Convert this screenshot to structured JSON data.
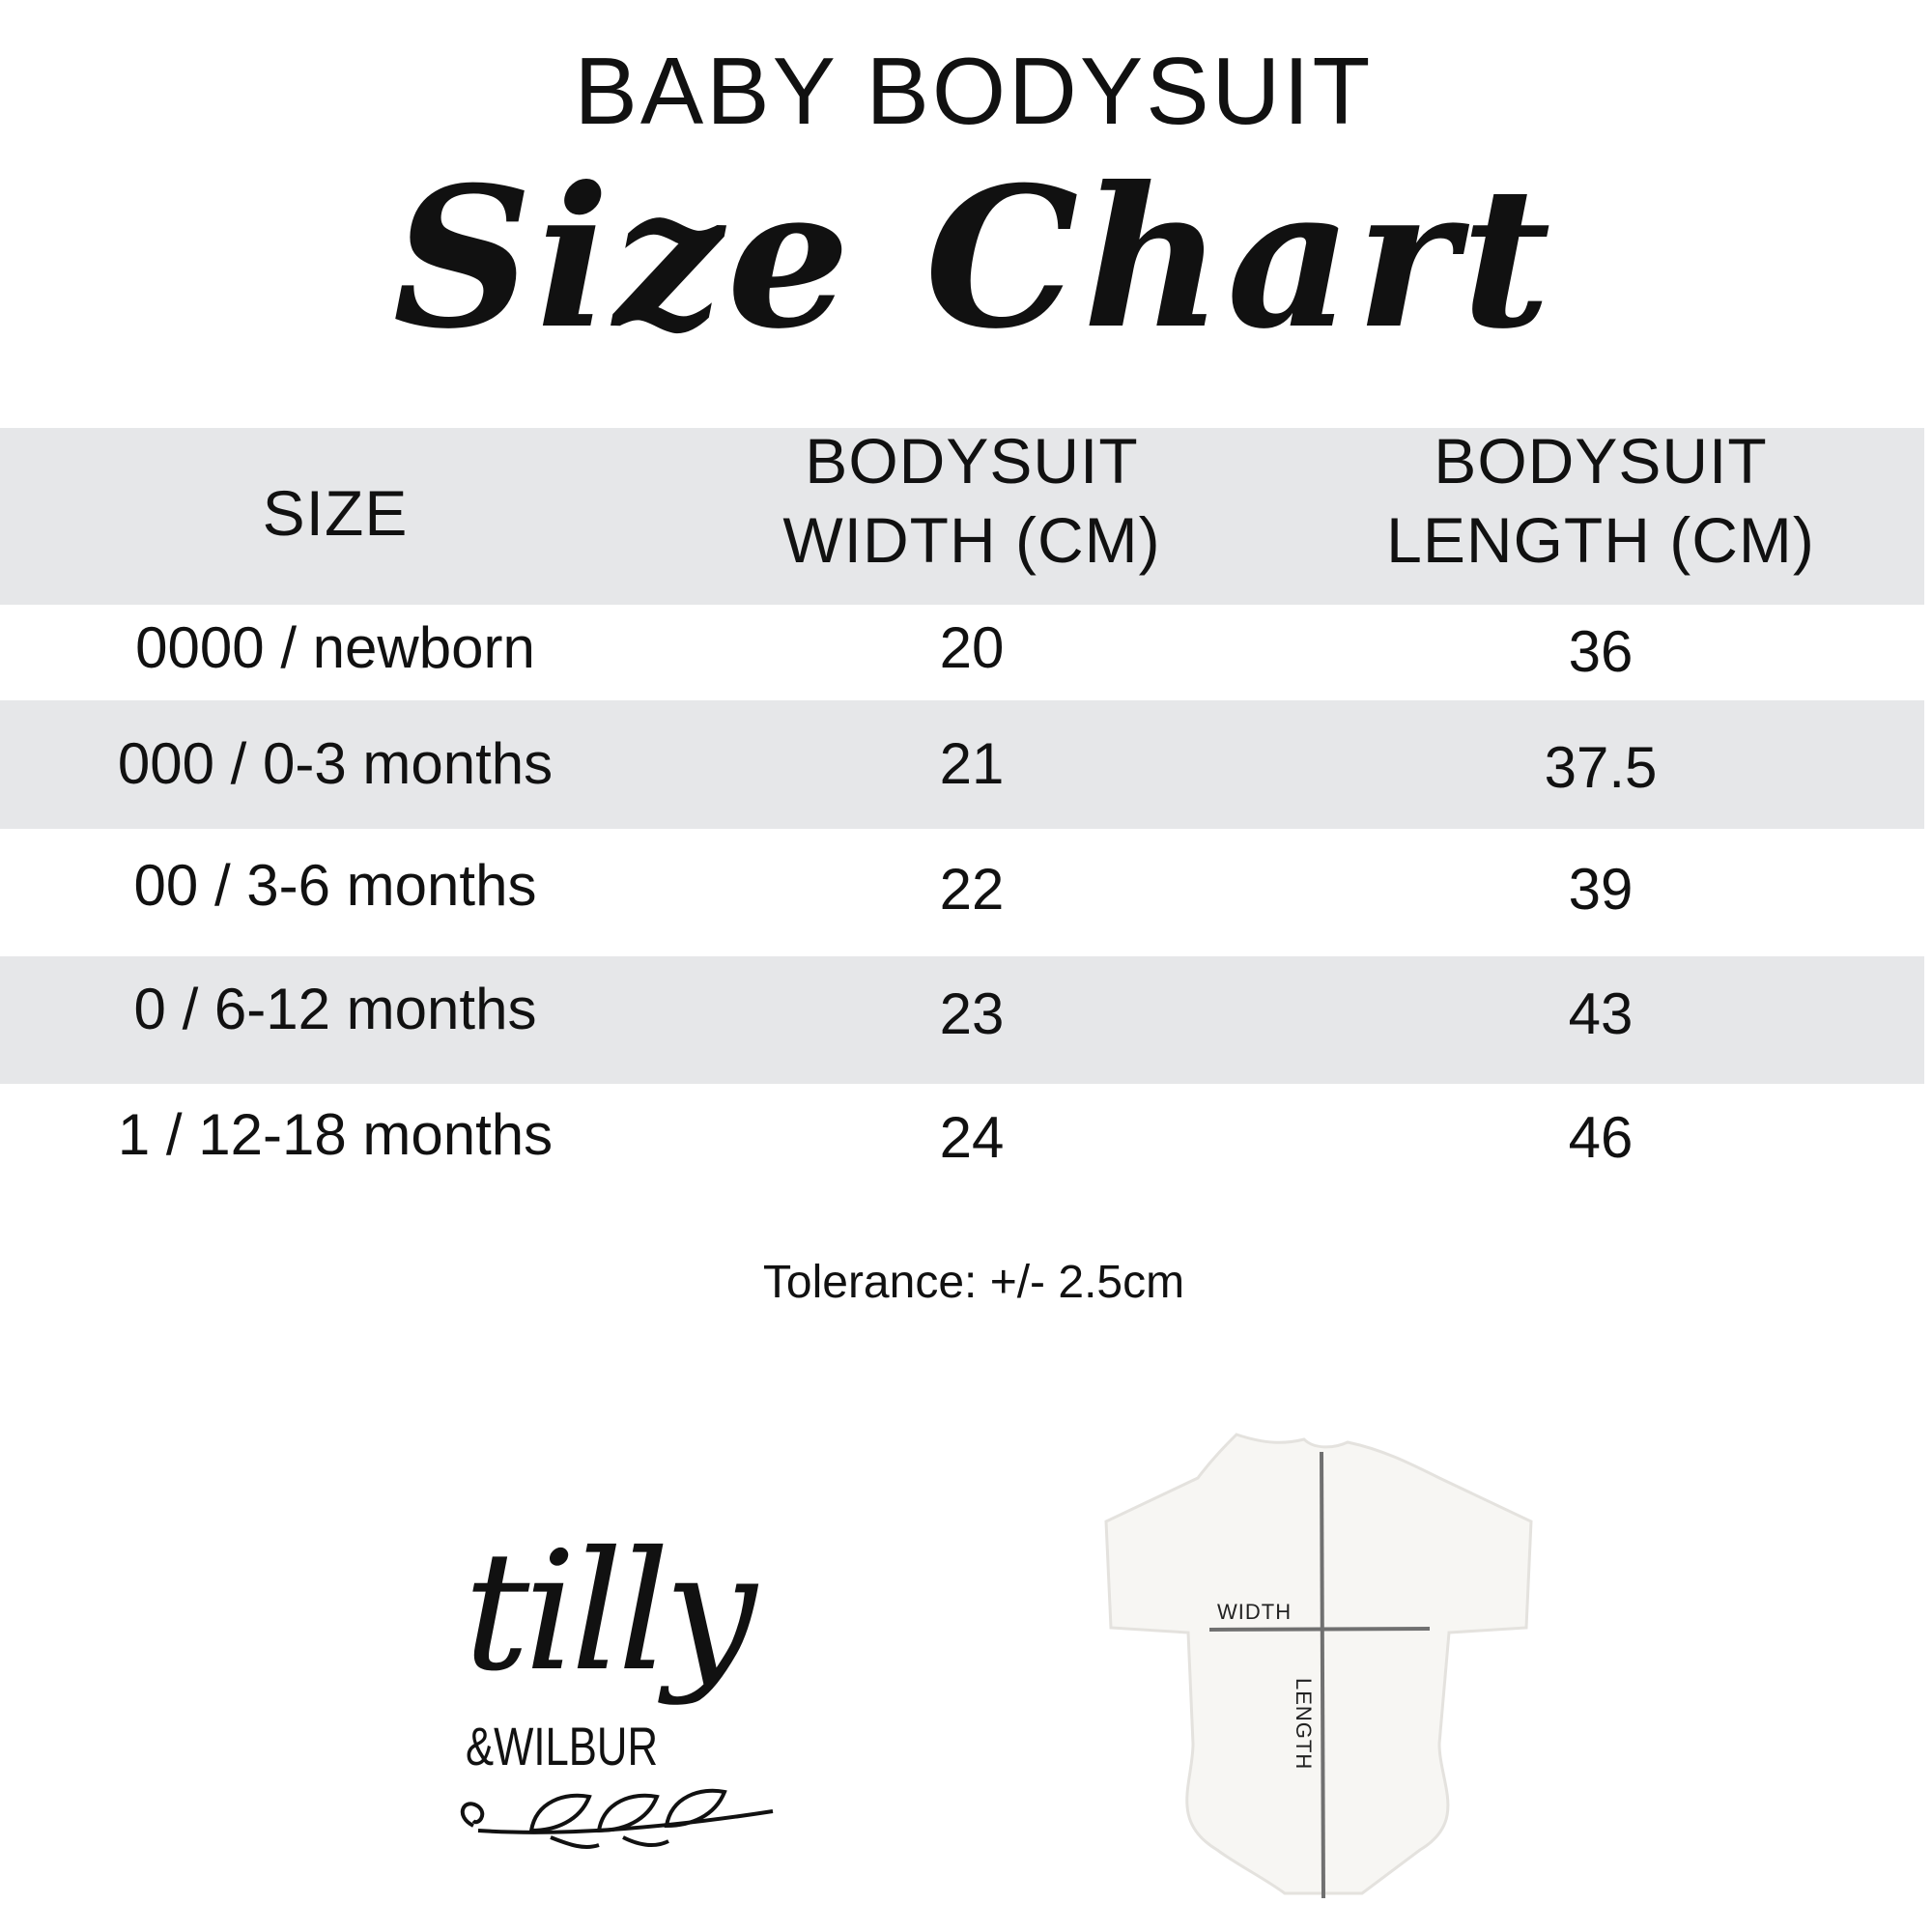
{
  "title": "BABY BODYSUIT",
  "subtitle": "Size Chart",
  "table": {
    "headers": [
      "SIZE",
      "BODYSUIT WIDTH (CM)",
      "BODYSUIT LENGTH (CM)"
    ],
    "header_lines": [
      [
        "SIZE"
      ],
      [
        "BODYSUIT",
        "WIDTH (CM)"
      ],
      [
        "BODYSUIT",
        "LENGTH (CM)"
      ]
    ],
    "rows": [
      [
        "0000 / newborn",
        "20",
        "36"
      ],
      [
        "000 / 0-3 months",
        "21",
        "37.5"
      ],
      [
        "00 / 3-6 months",
        "22",
        "39"
      ],
      [
        "0 / 6-12 months",
        "23",
        "43"
      ],
      [
        "1 / 12-18 months",
        "24",
        "46"
      ]
    ]
  },
  "tolerance": "Tolerance: +/- 2.5cm",
  "logo": {
    "line1": "tilly",
    "line2": "&WILBUR"
  },
  "diagram": {
    "width_label": "WIDTH",
    "length_label": "LENGTH"
  },
  "colors": {
    "band": "#e6e7e9",
    "text": "#111111",
    "measure_line": "#707070"
  }
}
